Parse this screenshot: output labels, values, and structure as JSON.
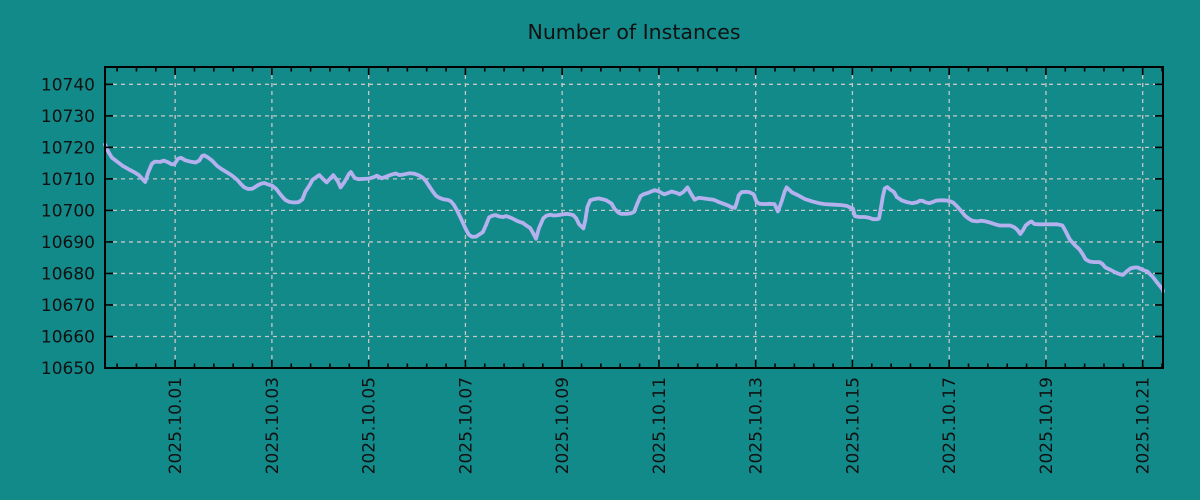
{
  "title": "Number of Instances",
  "colors": {
    "background": "#128a8a",
    "line": "#b4b1ee",
    "grid": "#c6c6c6",
    "axis": "#000000",
    "text": "#111111"
  },
  "chart_data": {
    "type": "line",
    "title": "Number of Instances",
    "xlabel": "",
    "ylabel": "",
    "grid": true,
    "legend_position": "none",
    "x_unit": "days since 2025-10-01",
    "xlim": [
      -1.45,
      20.42
    ],
    "ylim": [
      10650,
      10745.5
    ],
    "y_ticks": [
      10650,
      10660,
      10670,
      10680,
      10690,
      10700,
      10710,
      10720,
      10730,
      10740
    ],
    "x_major_ticks": [
      0,
      2,
      4,
      6,
      8,
      10,
      12,
      14,
      16,
      18,
      20
    ],
    "x_tick_labels": [
      "2025.10.01",
      "2025.10.03",
      "2025.10.05",
      "2025.10.07",
      "2025.10.09",
      "2025.10.11",
      "2025.10.13",
      "2025.10.15",
      "2025.10.17",
      "2025.10.19",
      "2025.10.21"
    ],
    "x_minor_step": 0.4,
    "series": [
      {
        "name": "instances",
        "points": [
          [
            -1.45,
            10720.9
          ],
          [
            -1.41,
            10719.5
          ],
          [
            -1.37,
            10718.3
          ],
          [
            -1.31,
            10716.8
          ],
          [
            -1.2,
            10715.5
          ],
          [
            -1.08,
            10714.1
          ],
          [
            -0.93,
            10712.8
          ],
          [
            -0.83,
            10712.0
          ],
          [
            -0.75,
            10711.2
          ],
          [
            -0.68,
            10710.0
          ],
          [
            -0.62,
            10709.0
          ],
          [
            -0.56,
            10712.0
          ],
          [
            -0.48,
            10714.8
          ],
          [
            -0.42,
            10715.5
          ],
          [
            -0.31,
            10715.4
          ],
          [
            -0.23,
            10715.8
          ],
          [
            -0.15,
            10715.3
          ],
          [
            -0.08,
            10714.7
          ],
          [
            -0.02,
            10714.6
          ],
          [
            0.06,
            10716.4
          ],
          [
            0.12,
            10716.7
          ],
          [
            0.21,
            10715.9
          ],
          [
            0.31,
            10715.5
          ],
          [
            0.42,
            10715.2
          ],
          [
            0.5,
            10715.8
          ],
          [
            0.56,
            10717.3
          ],
          [
            0.6,
            10717.5
          ],
          [
            0.68,
            10716.8
          ],
          [
            0.77,
            10715.7
          ],
          [
            0.87,
            10714.1
          ],
          [
            0.97,
            10713.0
          ],
          [
            1.08,
            10712.0
          ],
          [
            1.18,
            10711.0
          ],
          [
            1.29,
            10709.6
          ],
          [
            1.35,
            10708.5
          ],
          [
            1.43,
            10707.3
          ],
          [
            1.51,
            10706.8
          ],
          [
            1.6,
            10706.9
          ],
          [
            1.7,
            10707.9
          ],
          [
            1.78,
            10708.5
          ],
          [
            1.84,
            10708.7
          ],
          [
            1.93,
            10708.2
          ],
          [
            2.01,
            10707.8
          ],
          [
            2.09,
            10706.8
          ],
          [
            2.16,
            10705.4
          ],
          [
            2.22,
            10704.3
          ],
          [
            2.28,
            10703.3
          ],
          [
            2.36,
            10702.7
          ],
          [
            2.45,
            10702.5
          ],
          [
            2.55,
            10702.6
          ],
          [
            2.63,
            10703.5
          ],
          [
            2.69,
            10705.9
          ],
          [
            2.78,
            10708.0
          ],
          [
            2.84,
            10709.7
          ],
          [
            2.92,
            10710.6
          ],
          [
            2.98,
            10711.2
          ],
          [
            3.05,
            10710.1
          ],
          [
            3.13,
            10708.9
          ],
          [
            3.21,
            10710.2
          ],
          [
            3.27,
            10711.2
          ],
          [
            3.36,
            10709.3
          ],
          [
            3.42,
            10707.3
          ],
          [
            3.5,
            10709.0
          ],
          [
            3.59,
            10711.5
          ],
          [
            3.63,
            10712.2
          ],
          [
            3.71,
            10710.3
          ],
          [
            3.79,
            10709.9
          ],
          [
            3.9,
            10710.0
          ],
          [
            4.0,
            10710.1
          ],
          [
            4.08,
            10710.4
          ],
          [
            4.17,
            10711.0
          ],
          [
            4.27,
            10710.2
          ],
          [
            4.37,
            10710.8
          ],
          [
            4.46,
            10711.3
          ],
          [
            4.56,
            10711.7
          ],
          [
            4.64,
            10711.2
          ],
          [
            4.75,
            10711.5
          ],
          [
            4.85,
            10711.8
          ],
          [
            4.95,
            10711.6
          ],
          [
            5.04,
            10711.1
          ],
          [
            5.12,
            10710.4
          ],
          [
            5.18,
            10709.4
          ],
          [
            5.26,
            10707.5
          ],
          [
            5.33,
            10705.9
          ],
          [
            5.39,
            10704.7
          ],
          [
            5.45,
            10704.1
          ],
          [
            5.53,
            10703.6
          ],
          [
            5.64,
            10703.3
          ],
          [
            5.7,
            10702.9
          ],
          [
            5.76,
            10701.8
          ],
          [
            5.82,
            10700.2
          ],
          [
            5.89,
            10698.0
          ],
          [
            5.95,
            10696.0
          ],
          [
            6.01,
            10694.0
          ],
          [
            6.07,
            10692.3
          ],
          [
            6.14,
            10691.6
          ],
          [
            6.22,
            10691.7
          ],
          [
            6.28,
            10692.3
          ],
          [
            6.36,
            10693.1
          ],
          [
            6.43,
            10695.5
          ],
          [
            6.49,
            10697.8
          ],
          [
            6.57,
            10698.4
          ],
          [
            6.63,
            10698.5
          ],
          [
            6.69,
            10698.1
          ],
          [
            6.78,
            10697.9
          ],
          [
            6.84,
            10698.2
          ],
          [
            6.9,
            10697.9
          ],
          [
            6.98,
            10697.4
          ],
          [
            7.05,
            10696.8
          ],
          [
            7.13,
            10696.3
          ],
          [
            7.19,
            10696.0
          ],
          [
            7.25,
            10695.3
          ],
          [
            7.34,
            10694.4
          ],
          [
            7.4,
            10692.8
          ],
          [
            7.46,
            10691.0
          ],
          [
            7.52,
            10694.3
          ],
          [
            7.61,
            10697.5
          ],
          [
            7.67,
            10698.3
          ],
          [
            7.75,
            10698.6
          ],
          [
            7.83,
            10698.4
          ],
          [
            7.92,
            10698.5
          ],
          [
            8.0,
            10698.7
          ],
          [
            8.08,
            10698.9
          ],
          [
            8.15,
            10698.8
          ],
          [
            8.23,
            10698.5
          ],
          [
            8.29,
            10697.5
          ],
          [
            8.35,
            10695.6
          ],
          [
            8.44,
            10694.3
          ],
          [
            8.48,
            10697.0
          ],
          [
            8.52,
            10701.0
          ],
          [
            8.58,
            10703.2
          ],
          [
            8.64,
            10703.5
          ],
          [
            8.75,
            10703.8
          ],
          [
            8.85,
            10703.5
          ],
          [
            8.91,
            10703.2
          ],
          [
            9.02,
            10702.2
          ],
          [
            9.08,
            10700.6
          ],
          [
            9.16,
            10699.3
          ],
          [
            9.22,
            10698.9
          ],
          [
            9.33,
            10698.9
          ],
          [
            9.43,
            10699.1
          ],
          [
            9.49,
            10699.6
          ],
          [
            9.55,
            10702.0
          ],
          [
            9.62,
            10704.5
          ],
          [
            9.68,
            10705.1
          ],
          [
            9.78,
            10705.6
          ],
          [
            9.84,
            10706.0
          ],
          [
            9.91,
            10706.4
          ],
          [
            9.99,
            10706.1
          ],
          [
            10.05,
            10705.6
          ],
          [
            10.11,
            10705.1
          ],
          [
            10.2,
            10705.6
          ],
          [
            10.26,
            10706.0
          ],
          [
            10.36,
            10705.6
          ],
          [
            10.43,
            10705.1
          ],
          [
            10.51,
            10705.9
          ],
          [
            10.59,
            10707.3
          ],
          [
            10.67,
            10705.1
          ],
          [
            10.74,
            10703.4
          ],
          [
            10.82,
            10704.0
          ],
          [
            10.92,
            10703.8
          ],
          [
            11.03,
            10703.6
          ],
          [
            11.13,
            10703.4
          ],
          [
            11.23,
            10702.7
          ],
          [
            11.34,
            10702.1
          ],
          [
            11.44,
            10701.5
          ],
          [
            11.5,
            10701.0
          ],
          [
            11.57,
            10700.8
          ],
          [
            11.61,
            10702.5
          ],
          [
            11.65,
            10704.8
          ],
          [
            11.71,
            10705.8
          ],
          [
            11.81,
            10705.9
          ],
          [
            11.88,
            10705.7
          ],
          [
            11.96,
            10705.1
          ],
          [
            12.02,
            10702.7
          ],
          [
            12.08,
            10702.1
          ],
          [
            12.19,
            10702.0
          ],
          [
            12.29,
            10702.1
          ],
          [
            12.39,
            10702.0
          ],
          [
            12.46,
            10699.7
          ],
          [
            12.54,
            10703.0
          ],
          [
            12.6,
            10706.0
          ],
          [
            12.64,
            10707.3
          ],
          [
            12.75,
            10705.7
          ],
          [
            12.89,
            10704.7
          ],
          [
            13.02,
            10703.6
          ],
          [
            13.16,
            10702.9
          ],
          [
            13.31,
            10702.3
          ],
          [
            13.43,
            10702.0
          ],
          [
            13.62,
            10701.8
          ],
          [
            13.78,
            10701.7
          ],
          [
            13.89,
            10701.4
          ],
          [
            13.95,
            10700.9
          ],
          [
            14.01,
            10700.6
          ],
          [
            14.05,
            10698.2
          ],
          [
            14.14,
            10697.9
          ],
          [
            14.26,
            10697.9
          ],
          [
            14.34,
            10697.7
          ],
          [
            14.43,
            10697.2
          ],
          [
            14.51,
            10697.2
          ],
          [
            14.55,
            10697.4
          ],
          [
            14.58,
            10700.0
          ],
          [
            14.63,
            10704.5
          ],
          [
            14.67,
            10707.0
          ],
          [
            14.72,
            10707.4
          ],
          [
            14.78,
            10706.6
          ],
          [
            14.86,
            10705.8
          ],
          [
            14.92,
            10704.2
          ],
          [
            15.03,
            10703.1
          ],
          [
            15.13,
            10702.6
          ],
          [
            15.23,
            10702.3
          ],
          [
            15.34,
            10702.6
          ],
          [
            15.4,
            10703.1
          ],
          [
            15.46,
            10703.0
          ],
          [
            15.5,
            10702.6
          ],
          [
            15.59,
            10702.3
          ],
          [
            15.65,
            10702.6
          ],
          [
            15.73,
            10703.1
          ],
          [
            15.81,
            10703.2
          ],
          [
            15.9,
            10703.2
          ],
          [
            15.96,
            10703.1
          ],
          [
            16.02,
            10702.9
          ],
          [
            16.08,
            10702.5
          ],
          [
            16.15,
            10701.5
          ],
          [
            16.21,
            10700.5
          ],
          [
            16.27,
            10699.4
          ],
          [
            16.33,
            10698.3
          ],
          [
            16.41,
            10697.3
          ],
          [
            16.48,
            10696.7
          ],
          [
            16.58,
            10696.5
          ],
          [
            16.66,
            10696.7
          ],
          [
            16.75,
            10696.5
          ],
          [
            16.81,
            10696.3
          ],
          [
            16.89,
            10695.9
          ],
          [
            16.97,
            10695.5
          ],
          [
            17.04,
            10695.2
          ],
          [
            17.14,
            10695.2
          ],
          [
            17.26,
            10695.2
          ],
          [
            17.35,
            10694.6
          ],
          [
            17.41,
            10693.8
          ],
          [
            17.47,
            10692.5
          ],
          [
            17.53,
            10693.8
          ],
          [
            17.58,
            10695.2
          ],
          [
            17.66,
            10696.2
          ],
          [
            17.7,
            10696.5
          ],
          [
            17.76,
            10695.7
          ],
          [
            17.84,
            10695.6
          ],
          [
            17.93,
            10695.6
          ],
          [
            18.03,
            10695.6
          ],
          [
            18.14,
            10695.6
          ],
          [
            18.24,
            10695.6
          ],
          [
            18.34,
            10695.2
          ],
          [
            18.4,
            10693.6
          ],
          [
            18.49,
            10690.9
          ],
          [
            18.55,
            10689.8
          ],
          [
            18.61,
            10688.8
          ],
          [
            18.69,
            10687.7
          ],
          [
            18.76,
            10686.1
          ],
          [
            18.82,
            10684.5
          ],
          [
            18.9,
            10683.8
          ],
          [
            19.0,
            10683.6
          ],
          [
            19.11,
            10683.6
          ],
          [
            19.17,
            10683.0
          ],
          [
            19.23,
            10681.9
          ],
          [
            19.34,
            10681.1
          ],
          [
            19.44,
            10680.3
          ],
          [
            19.52,
            10679.8
          ],
          [
            19.59,
            10679.5
          ],
          [
            19.69,
            10680.9
          ],
          [
            19.75,
            10681.6
          ],
          [
            19.83,
            10681.9
          ],
          [
            19.9,
            10681.9
          ],
          [
            19.96,
            10681.4
          ],
          [
            20.04,
            10680.9
          ],
          [
            20.1,
            10680.6
          ],
          [
            20.15,
            10679.8
          ],
          [
            20.21,
            10678.9
          ],
          [
            20.27,
            10677.7
          ],
          [
            20.35,
            10676.1
          ],
          [
            20.41,
            10675.0
          ],
          [
            20.42,
            10674.4
          ]
        ]
      }
    ]
  }
}
